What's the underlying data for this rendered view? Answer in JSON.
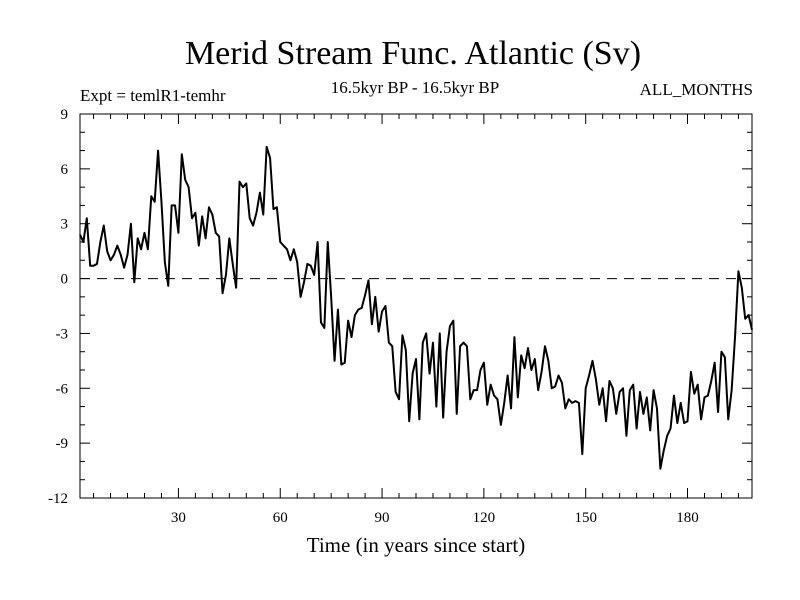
{
  "chart_data": {
    "type": "line",
    "title": "Merid Stream Func. Atlantic (Sv)",
    "subtitle": "16.5kyr BP - 16.5kyr BP",
    "experiment_label": "Expt = temlR1-temhr",
    "period_label": "ALL_MONTHS",
    "xlabel": "Time (in years since start)",
    "ylabel": "",
    "xlim": [
      1,
      199
    ],
    "ylim": [
      -12,
      9
    ],
    "xticks": [
      30,
      60,
      90,
      120,
      150,
      180
    ],
    "yticks": [
      -12,
      -9,
      -6,
      -3,
      0,
      3,
      6,
      9
    ],
    "reference_line": {
      "y": 0,
      "style": "dashed"
    },
    "series": [
      {
        "name": "Merid Stream Func. Atlantic",
        "x": [
          1,
          2,
          3,
          4,
          5,
          6,
          7,
          8,
          9,
          10,
          11,
          12,
          13,
          14,
          15,
          16,
          17,
          18,
          19,
          20,
          21,
          22,
          23,
          24,
          25,
          26,
          27,
          28,
          29,
          30,
          31,
          32,
          33,
          34,
          35,
          36,
          37,
          38,
          39,
          40,
          41,
          42,
          43,
          44,
          45,
          46,
          47,
          48,
          49,
          50,
          51,
          52,
          53,
          54,
          55,
          56,
          57,
          58,
          59,
          60,
          61,
          62,
          63,
          64,
          65,
          66,
          67,
          68,
          69,
          70,
          71,
          72,
          73,
          74,
          75,
          76,
          77,
          78,
          79,
          80,
          81,
          82,
          83,
          84,
          85,
          86,
          87,
          88,
          89,
          90,
          91,
          92,
          93,
          94,
          95,
          96,
          97,
          98,
          99,
          100,
          101,
          102,
          103,
          104,
          105,
          106,
          107,
          108,
          109,
          110,
          111,
          112,
          113,
          114,
          115,
          116,
          117,
          118,
          119,
          120,
          121,
          122,
          123,
          124,
          125,
          126,
          127,
          128,
          129,
          130,
          131,
          132,
          133,
          134,
          135,
          136,
          137,
          138,
          139,
          140,
          141,
          142,
          143,
          144,
          145,
          146,
          147,
          148,
          149,
          150,
          151,
          152,
          153,
          154,
          155,
          156,
          157,
          158,
          159,
          160,
          161,
          162,
          163,
          164,
          165,
          166,
          167,
          168,
          169,
          170,
          171,
          172,
          173,
          174,
          175,
          176,
          177,
          178,
          179,
          180,
          181,
          182,
          183,
          184,
          185,
          186,
          187,
          188,
          189,
          190,
          191,
          192,
          193,
          194,
          195,
          196,
          197,
          198,
          199
        ],
        "values": [
          2.4,
          2.0,
          3.3,
          0.7,
          0.7,
          0.8,
          2.0,
          2.9,
          1.5,
          1.0,
          1.3,
          1.8,
          1.3,
          0.6,
          1.3,
          3.0,
          -0.2,
          2.2,
          1.6,
          2.5,
          1.6,
          4.5,
          4.2,
          7.0,
          4.2,
          0.9,
          -0.4,
          4.0,
          4.0,
          2.5,
          6.8,
          5.4,
          5.0,
          3.3,
          3.6,
          1.8,
          3.4,
          2.2,
          3.9,
          3.5,
          2.5,
          2.3,
          -0.8,
          0.2,
          2.2,
          0.8,
          -0.5,
          5.3,
          5.0,
          5.2,
          3.3,
          2.9,
          3.6,
          4.7,
          3.5,
          7.2,
          6.6,
          3.8,
          3.9,
          2.0,
          1.8,
          1.6,
          1.0,
          1.6,
          0.9,
          -1.0,
          -0.2,
          0.8,
          0.7,
          0.2,
          2.0,
          -2.4,
          -2.7,
          2.0,
          -1.0,
          -4.5,
          -1.7,
          -4.7,
          -4.6,
          -2.3,
          -3.2,
          -2.0,
          -1.7,
          -1.6,
          -0.9,
          -0.1,
          -2.5,
          -1.0,
          -2.9,
          -1.8,
          -1.5,
          -3.5,
          -3.7,
          -6.2,
          -6.6,
          -3.1,
          -3.9,
          -7.8,
          -5.2,
          -4.4,
          -7.7,
          -3.5,
          -3.0,
          -5.2,
          -3.5,
          -7.0,
          -3.0,
          -7.6,
          -4.0,
          -2.6,
          -2.3,
          -7.4,
          -3.7,
          -3.5,
          -3.7,
          -6.6,
          -6.1,
          -6.1,
          -5.0,
          -4.6,
          -6.9,
          -5.8,
          -6.4,
          -6.6,
          -8.0,
          -6.8,
          -5.3,
          -7.1,
          -3.2,
          -6.5,
          -4.2,
          -4.9,
          -3.8,
          -5.0,
          -4.4,
          -6.1,
          -5.1,
          -3.7,
          -4.5,
          -6.0,
          -5.9,
          -5.3,
          -5.7,
          -7.1,
          -6.6,
          -6.8,
          -6.7,
          -6.8,
          -9.6,
          -6.0,
          -5.3,
          -4.5,
          -5.5,
          -6.9,
          -6.0,
          -7.8,
          -5.6,
          -6.0,
          -7.4,
          -6.2,
          -6.0,
          -8.6,
          -6.1,
          -5.8,
          -8.2,
          -6.2,
          -7.4,
          -6.5,
          -8.3,
          -6.1,
          -7.1,
          -10.4,
          -9.4,
          -8.6,
          -8.2,
          -6.4,
          -7.9,
          -6.8,
          -7.9,
          -7.8,
          -5.1,
          -6.3,
          -5.8,
          -7.7,
          -6.5,
          -6.4,
          -5.6,
          -4.6,
          -7.3,
          -4.0,
          -4.3,
          -7.7,
          -6.1,
          -3.2,
          0.4,
          -0.5,
          -2.2,
          -2.0,
          -2.8
        ]
      }
    ]
  }
}
